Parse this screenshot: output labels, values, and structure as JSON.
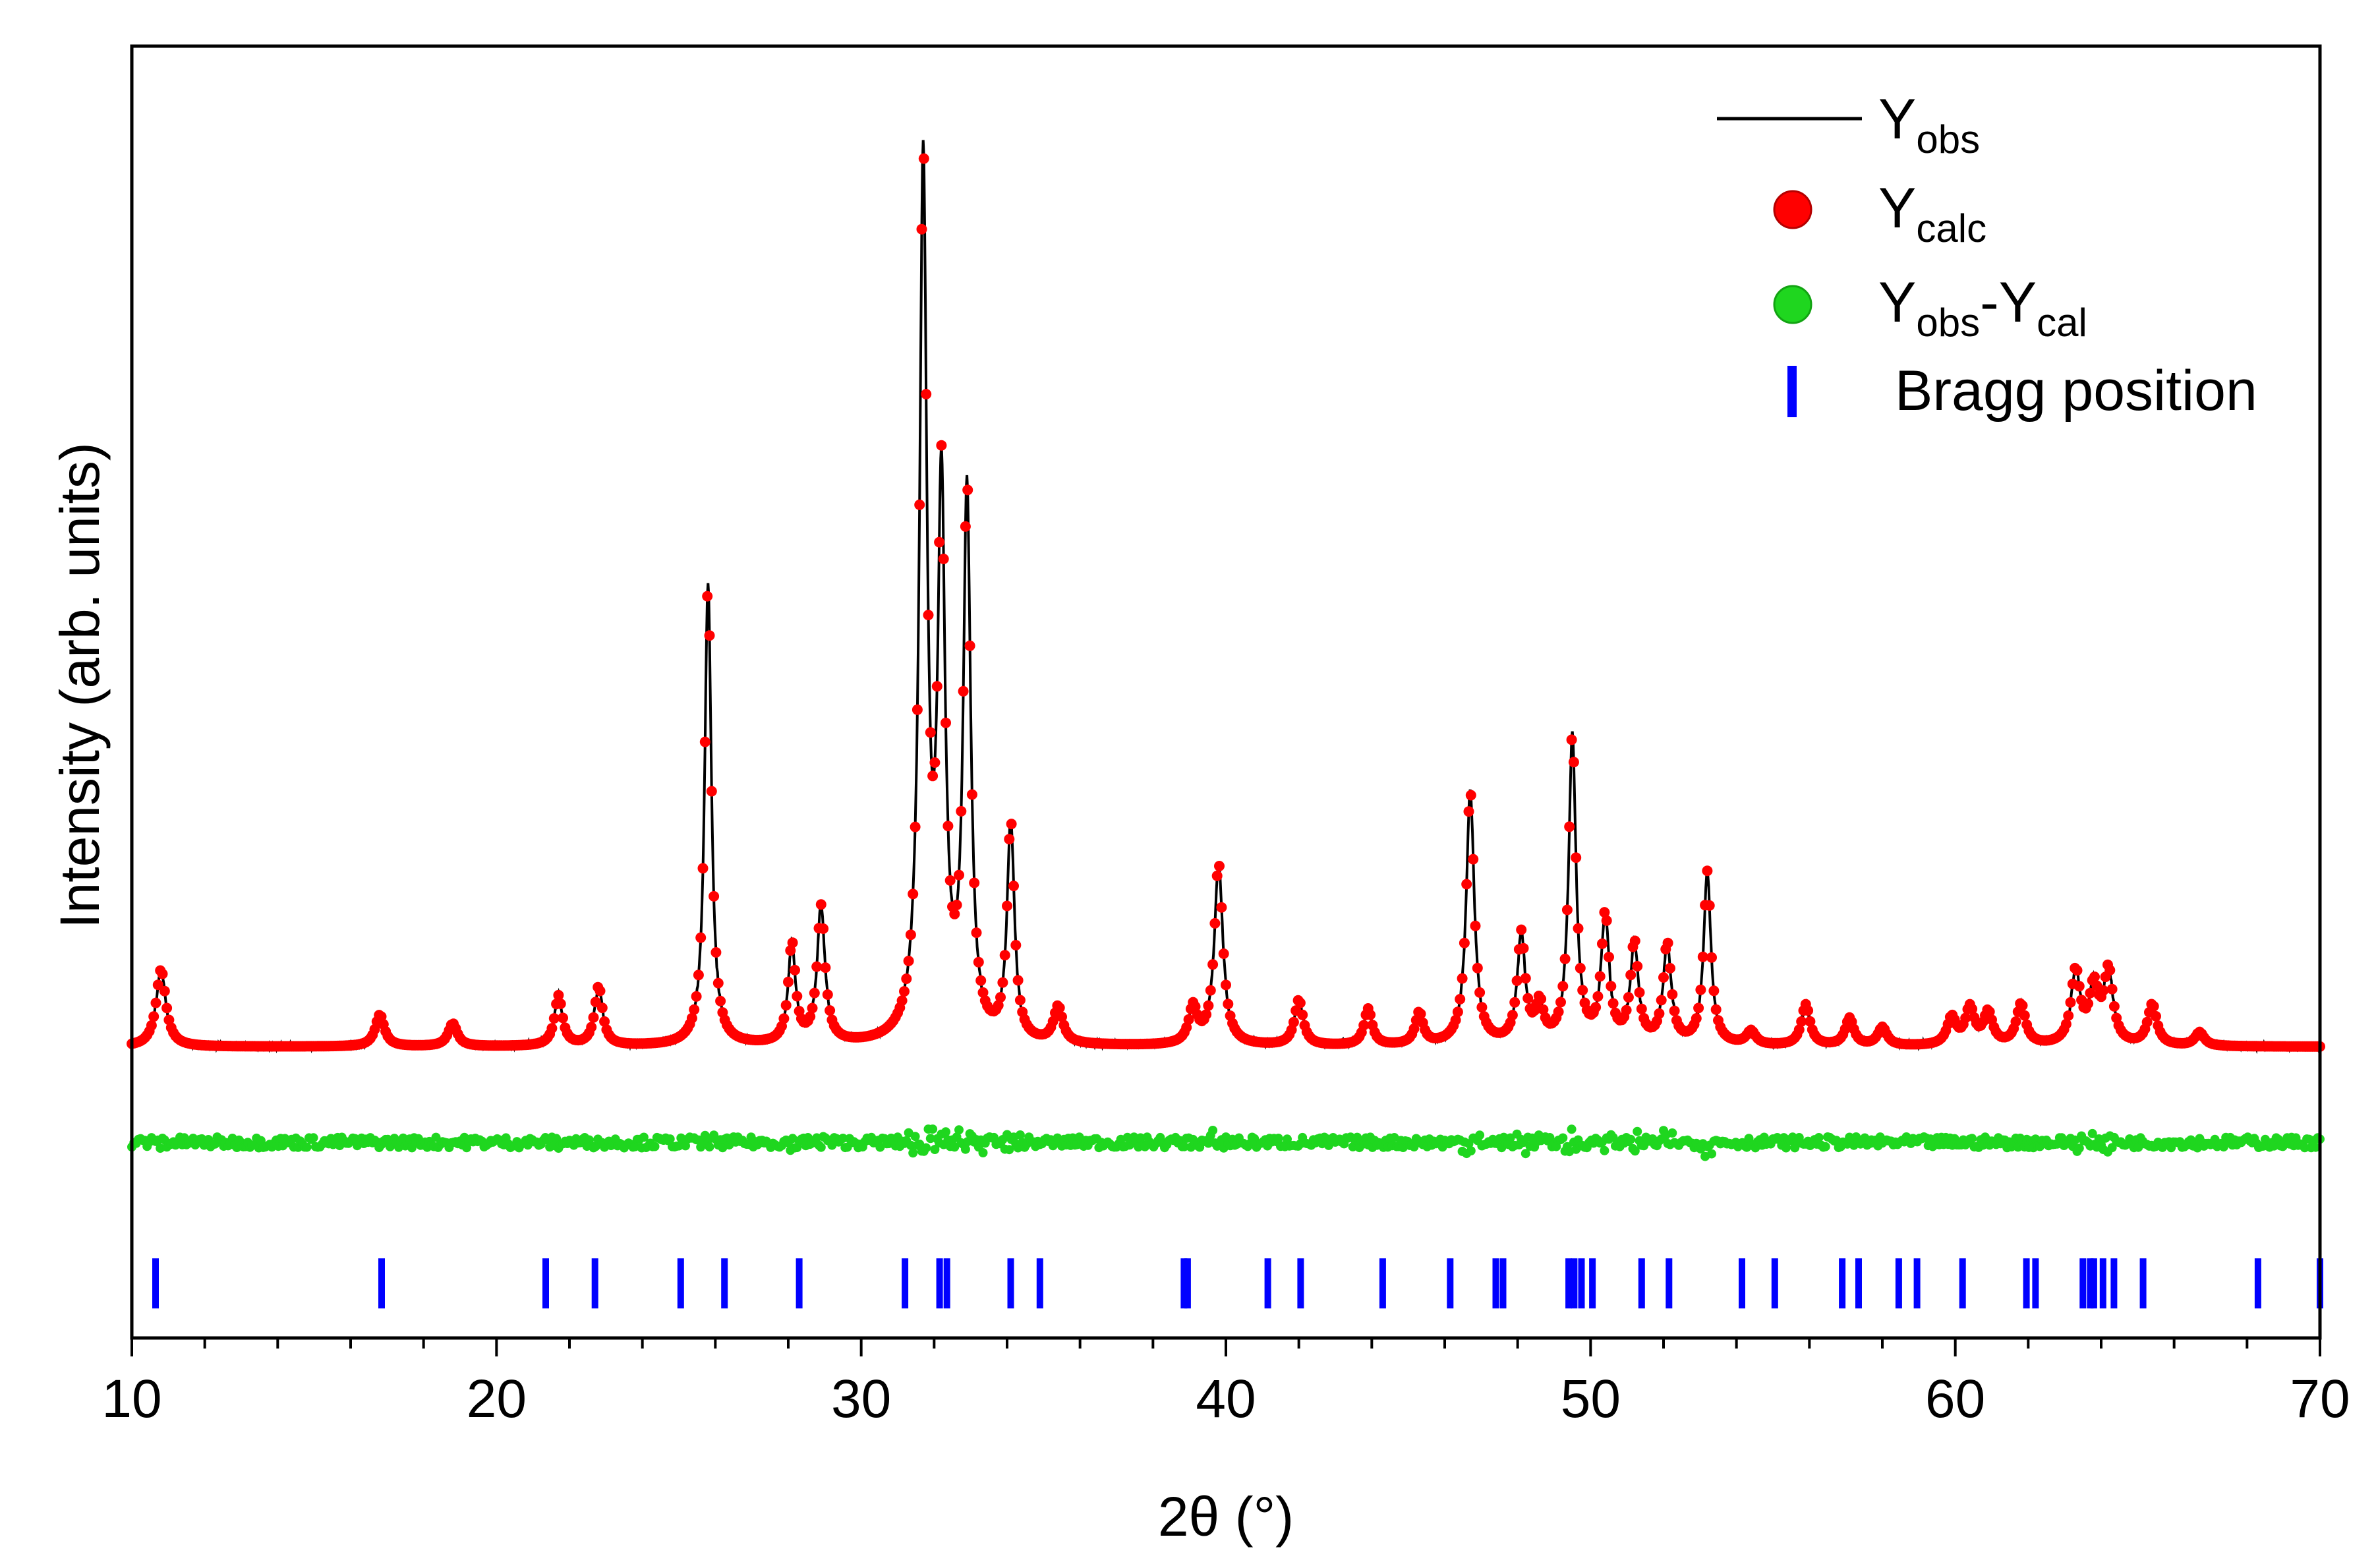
{
  "chart_data": {
    "type": "line",
    "title": "",
    "xlabel": "2θ (°)",
    "ylabel": "Intensity (arb. units)",
    "xlim": [
      10,
      70
    ],
    "ylim": [
      -0.32,
      1.1
    ],
    "x_ticks": [
      10,
      20,
      30,
      40,
      50,
      60,
      70
    ],
    "grid": false,
    "legend_position": "top-right",
    "colors": {
      "observed": "#000000",
      "calculated": "#ff0000",
      "difference": "#1fd61f",
      "bragg": "#0000ff"
    },
    "legend": [
      {
        "main": "Y",
        "sub": "obs",
        "main2": "",
        "sub2": "",
        "text": "",
        "symbol": "line"
      },
      {
        "main": "Y",
        "sub": "calc",
        "main2": "",
        "sub2": "",
        "text": "",
        "symbol": "red-circle"
      },
      {
        "main": "Y",
        "sub": "obs",
        "main2": "-Y",
        "sub2": "cal",
        "text": "",
        "symbol": "green-circle"
      },
      {
        "main": "",
        "sub": "",
        "main2": "",
        "sub2": "",
        "text": "Bragg position",
        "symbol": "blue-tick"
      }
    ],
    "background_level": 0.0,
    "difference_level": -0.105,
    "bragg_level": -0.26,
    "peaks": [
      {
        "pos": 10.8,
        "height": 0.085,
        "width": 0.16
      },
      {
        "pos": 16.8,
        "height": 0.035,
        "width": 0.15
      },
      {
        "pos": 18.8,
        "height": 0.025,
        "width": 0.15
      },
      {
        "pos": 21.7,
        "height": 0.055,
        "width": 0.13
      },
      {
        "pos": 22.8,
        "height": 0.065,
        "width": 0.13
      },
      {
        "pos": 25.8,
        "height": 0.51,
        "width": 0.11
      },
      {
        "pos": 28.1,
        "height": 0.11,
        "width": 0.12
      },
      {
        "pos": 28.9,
        "height": 0.15,
        "width": 0.13
      },
      {
        "pos": 31.7,
        "height": 0.96,
        "width": 0.12
      },
      {
        "pos": 32.2,
        "height": 0.59,
        "width": 0.12
      },
      {
        "pos": 32.9,
        "height": 0.6,
        "width": 0.12
      },
      {
        "pos": 34.1,
        "height": 0.24,
        "width": 0.12
      },
      {
        "pos": 35.4,
        "height": 0.04,
        "width": 0.15
      },
      {
        "pos": 39.1,
        "height": 0.04,
        "width": 0.14
      },
      {
        "pos": 39.8,
        "height": 0.2,
        "width": 0.14
      },
      {
        "pos": 42.0,
        "height": 0.05,
        "width": 0.14
      },
      {
        "pos": 43.9,
        "height": 0.04,
        "width": 0.13
      },
      {
        "pos": 45.3,
        "height": 0.035,
        "width": 0.13
      },
      {
        "pos": 46.7,
        "height": 0.28,
        "width": 0.13
      },
      {
        "pos": 48.1,
        "height": 0.12,
        "width": 0.13
      },
      {
        "pos": 48.6,
        "height": 0.04,
        "width": 0.13
      },
      {
        "pos": 49.5,
        "height": 0.34,
        "width": 0.12
      },
      {
        "pos": 50.4,
        "height": 0.14,
        "width": 0.13
      },
      {
        "pos": 51.2,
        "height": 0.11,
        "width": 0.13
      },
      {
        "pos": 52.1,
        "height": 0.11,
        "width": 0.13
      },
      {
        "pos": 53.2,
        "height": 0.19,
        "width": 0.12
      },
      {
        "pos": 54.4,
        "height": 0.015,
        "width": 0.15
      },
      {
        "pos": 55.9,
        "height": 0.045,
        "width": 0.14
      },
      {
        "pos": 57.1,
        "height": 0.03,
        "width": 0.14
      },
      {
        "pos": 58.0,
        "height": 0.02,
        "width": 0.15
      },
      {
        "pos": 59.9,
        "height": 0.03,
        "width": 0.15
      },
      {
        "pos": 60.4,
        "height": 0.04,
        "width": 0.15
      },
      {
        "pos": 60.9,
        "height": 0.035,
        "width": 0.15
      },
      {
        "pos": 61.8,
        "height": 0.045,
        "width": 0.15
      },
      {
        "pos": 63.3,
        "height": 0.08,
        "width": 0.15
      },
      {
        "pos": 63.8,
        "height": 0.06,
        "width": 0.15
      },
      {
        "pos": 64.2,
        "height": 0.08,
        "width": 0.15
      },
      {
        "pos": 65.4,
        "height": 0.045,
        "width": 0.15
      },
      {
        "pos": 66.7,
        "height": 0.015,
        "width": 0.15
      }
    ],
    "bragg_positions": [
      10.65,
      16.85,
      21.35,
      22.7,
      25.05,
      26.25,
      28.3,
      31.2,
      32.15,
      32.35,
      34.1,
      34.9,
      38.85,
      38.95,
      41.15,
      42.05,
      44.3,
      46.15,
      47.4,
      47.6,
      49.4,
      49.55,
      49.75,
      50.05,
      51.4,
      52.15,
      54.15,
      55.05,
      56.9,
      57.35,
      58.45,
      58.95,
      60.2,
      61.95,
      62.2,
      63.5,
      63.7,
      63.8,
      64.05,
      64.35,
      65.15,
      68.3,
      70.0
    ]
  }
}
